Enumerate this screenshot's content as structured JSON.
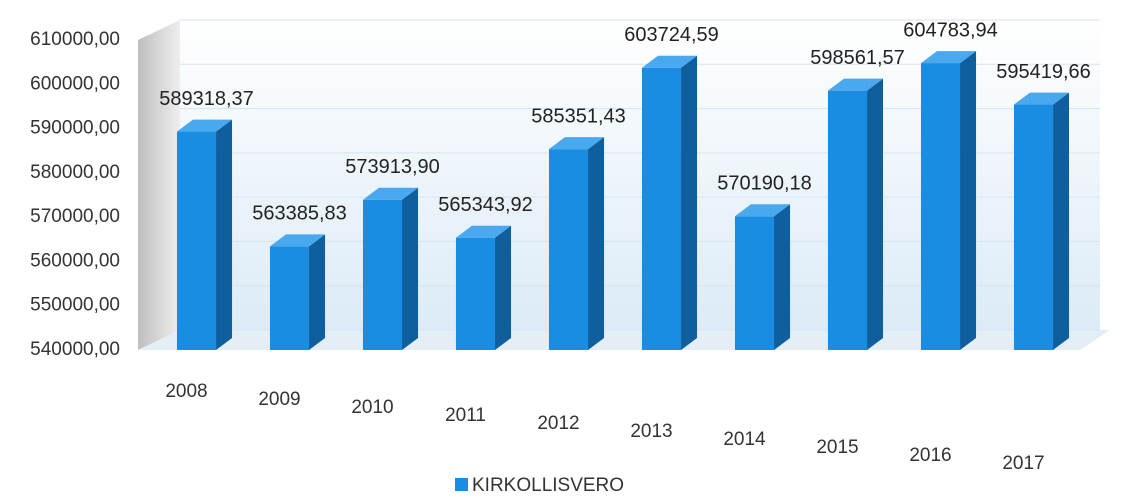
{
  "chart_data": {
    "type": "bar",
    "categories": [
      "2008",
      "2009",
      "2010",
      "2011",
      "2012",
      "2013",
      "2014",
      "2015",
      "2016",
      "2017"
    ],
    "series": [
      {
        "name": "KIRKOLLISVERO",
        "color": "#1a8de3",
        "values": [
          589318.37,
          563385.83,
          573913.9,
          565343.92,
          585351.43,
          603724.59,
          570190.18,
          598561.57,
          604783.94,
          595419.66
        ],
        "value_labels": [
          "589318,37",
          "563385,83",
          "573913,90",
          "565343,92",
          "585351,43",
          "603724,59",
          "570190,18",
          "598561,57",
          "604783,94",
          "595419,66"
        ]
      }
    ],
    "ylim": [
      540000,
      610000
    ],
    "yticks": [
      {
        "value": 540000,
        "label": "540000,00"
      },
      {
        "value": 550000,
        "label": "550000,00"
      },
      {
        "value": 560000,
        "label": "560000,00"
      },
      {
        "value": 570000,
        "label": "570000,00"
      },
      {
        "value": 580000,
        "label": "580000,00"
      },
      {
        "value": 590000,
        "label": "590000,00"
      },
      {
        "value": 600000,
        "label": "600000,00"
      },
      {
        "value": 610000,
        "label": "610000,00"
      }
    ],
    "grid": true,
    "legend": "bottom"
  }
}
